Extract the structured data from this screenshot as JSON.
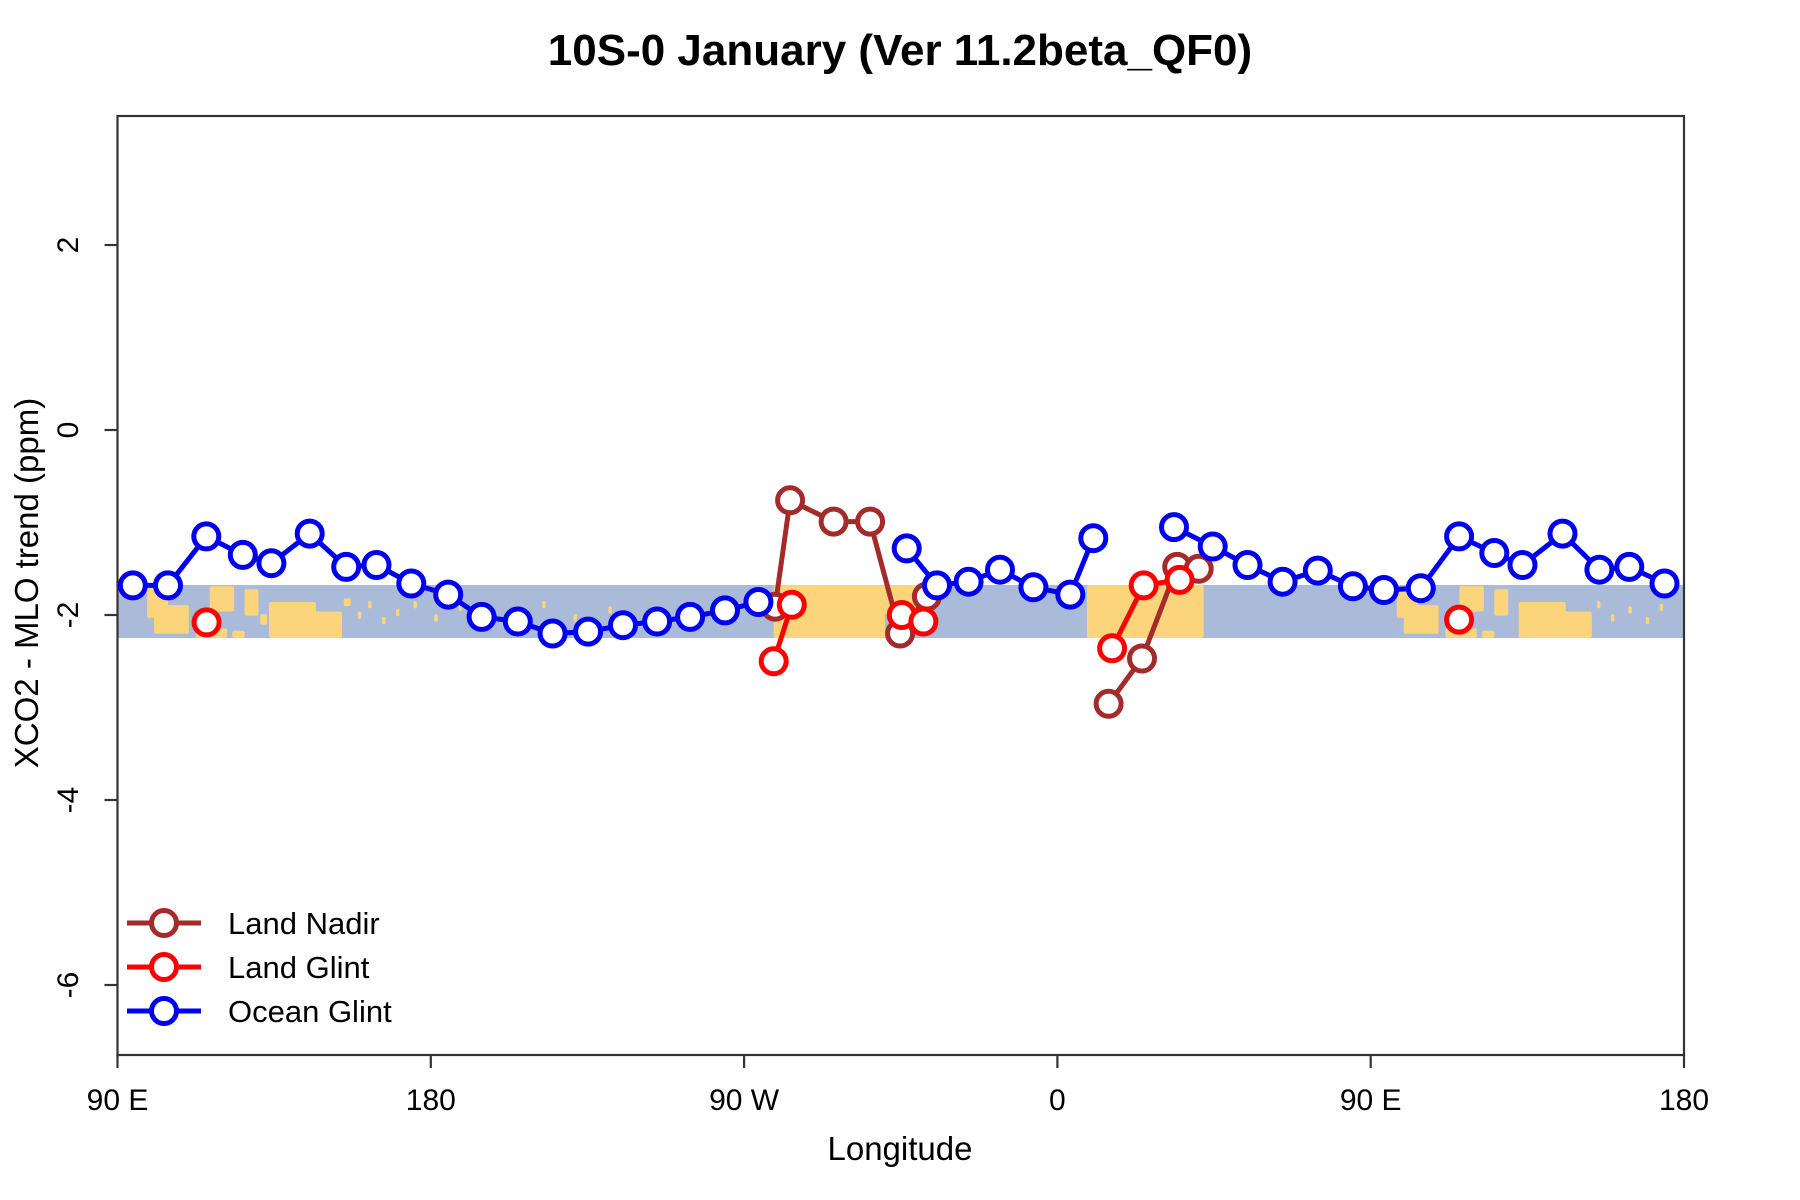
{
  "title": "10S-0 January (Ver 11.2beta_QF0)",
  "axes": {
    "x_label": "Longitude",
    "y_label": "XCO2 - MLO trend (ppm)"
  },
  "legend": {
    "items": [
      {
        "label": "Land Nadir",
        "color": "#a52a2a"
      },
      {
        "label": "Land Glint",
        "color": "#ff0000"
      },
      {
        "label": "Ocean Glint",
        "color": "#0000ee"
      }
    ]
  },
  "map_band": {
    "comment": "horizontal world-map strip (10S-0 latitude band) drawn behind data",
    "ocean_color": "#a9bbd8",
    "land_color": "#fcd47c",
    "top_value": -1.676,
    "bottom_value": -2.249,
    "land_blobs": [
      [
        98.5,
        104.5,
        0.05,
        0.62
      ],
      [
        100.5,
        110.5,
        0.38,
        0.92
      ],
      [
        112.5,
        121.5,
        0.82,
        1.0
      ],
      [
        123,
        126.5,
        0.86,
        1.0
      ],
      [
        116.5,
        123.5,
        0.02,
        0.5
      ],
      [
        126.5,
        130.5,
        0.08,
        0.58
      ],
      [
        131,
        133,
        0.55,
        0.75
      ],
      [
        133.5,
        147,
        0.32,
        1.0
      ],
      [
        142,
        154.5,
        0.5,
        1.0
      ],
      [
        155,
        157,
        0.25,
        0.4
      ],
      [
        159,
        160,
        0.5,
        0.64
      ],
      [
        162,
        163,
        0.3,
        0.44
      ],
      [
        166,
        167,
        0.6,
        0.74
      ],
      [
        170,
        171,
        0.45,
        0.59
      ],
      [
        175,
        176,
        0.3,
        0.44
      ],
      [
        181,
        182,
        0.55,
        0.69
      ],
      [
        188,
        189,
        0.35,
        0.49
      ],
      [
        195,
        196,
        0.6,
        0.74
      ],
      [
        203,
        204,
        0.45,
        0.59
      ],
      [
        212,
        213,
        0.3,
        0.44
      ],
      [
        221,
        222,
        0.55,
        0.69
      ],
      [
        231,
        232,
        0.4,
        0.54
      ],
      [
        243,
        244,
        0.6,
        0.74
      ],
      [
        252,
        253,
        0.35,
        0.49
      ],
      [
        261,
        262,
        0.5,
        0.64
      ],
      [
        278.5,
        310.5,
        0.0,
        1.0
      ],
      [
        309.5,
        324,
        0.0,
        0.55
      ],
      [
        368.5,
        402,
        0.0,
        1.0
      ],
      [
        457.5,
        463.5,
        0.05,
        0.62
      ],
      [
        459.5,
        469.5,
        0.38,
        0.92
      ],
      [
        471.5,
        480.5,
        0.82,
        1.0
      ],
      [
        482,
        485.5,
        0.86,
        1.0
      ],
      [
        475.5,
        482.5,
        0.02,
        0.5
      ],
      [
        485.5,
        489.5,
        0.08,
        0.58
      ],
      [
        492.5,
        506,
        0.32,
        1.0
      ],
      [
        501,
        513.5,
        0.5,
        1.0
      ],
      [
        515,
        516,
        0.3,
        0.44
      ],
      [
        519,
        520,
        0.55,
        0.69
      ],
      [
        524,
        525,
        0.4,
        0.54
      ],
      [
        529,
        530,
        0.6,
        0.74
      ],
      [
        533,
        534,
        0.35,
        0.49
      ]
    ]
  },
  "chart_data": {
    "type": "line",
    "title": "10S-0 January (Ver 11.2beta_QF0)",
    "xlabel": "Longitude",
    "ylabel": "XCO2 - MLO trend (ppm)",
    "x_convention": "axis degrees eastward: 90=90E, 180=180, 270=90W, 360=0, 450=90E, 540=180",
    "xlim": [
      90,
      540
    ],
    "ylim": [
      -6.76,
      3.39
    ],
    "grid": false,
    "legend_position": "bottom-left-inside",
    "x_ticks": [
      {
        "deg": 90,
        "label": "90 E"
      },
      {
        "deg": 180,
        "label": "180"
      },
      {
        "deg": 270,
        "label": "90 W"
      },
      {
        "deg": 360,
        "label": "0"
      },
      {
        "deg": 450,
        "label": "90 E"
      },
      {
        "deg": 540,
        "label": "180"
      }
    ],
    "y_ticks": [
      {
        "v": 2,
        "label": "2"
      },
      {
        "v": 0,
        "label": "0"
      },
      {
        "v": -2,
        "label": "-2"
      },
      {
        "v": -4,
        "label": "-4"
      },
      {
        "v": -6,
        "label": "-6"
      }
    ],
    "series": [
      {
        "name": "Land Nadir",
        "color": "#a52a2a",
        "segments": [
          [
            [
              278.9,
              -1.91
            ],
            [
              283.2,
              -0.76
            ],
            [
              295.7,
              -0.99
            ],
            [
              306.2,
              -0.99
            ],
            [
              314.8,
              -2.2
            ],
            [
              322.5,
              -1.8
            ]
          ],
          [
            [
              374.7,
              -2.96
            ],
            [
              384.3,
              -2.47
            ],
            [
              394.4,
              -1.48
            ],
            [
              400.6,
              -1.5
            ]
          ]
        ]
      },
      {
        "name": "Land Glint",
        "color": "#ff0000",
        "segments": [
          [
            [
              115.6,
              -2.08
            ]
          ],
          [
            [
              278.5,
              -2.5
            ],
            [
              283.7,
              -1.89
            ]
          ],
          [
            [
              315.3,
              -2.0
            ],
            [
              321.5,
              -2.07
            ]
          ],
          [
            [
              375.7,
              -2.36
            ],
            [
              384.8,
              -1.68
            ],
            [
              395.1,
              -1.62
            ]
          ],
          [
            [
              475.4,
              -2.05
            ]
          ]
        ]
      },
      {
        "name": "Ocean Glint",
        "color": "#0000ee",
        "segments": [
          [
            [
              94.4,
              -1.68
            ],
            [
              104.5,
              -1.68
            ],
            [
              115.5,
              -1.15
            ],
            [
              126.0,
              -1.35
            ],
            [
              134.2,
              -1.44
            ],
            [
              145.2,
              -1.12
            ],
            [
              155.7,
              -1.48
            ],
            [
              164.4,
              -1.46
            ],
            [
              174.4,
              -1.66
            ],
            [
              185.0,
              -1.78
            ],
            [
              194.6,
              -2.02
            ],
            [
              205.0,
              -2.07
            ],
            [
              215.0,
              -2.2
            ],
            [
              225.2,
              -2.18
            ],
            [
              235.2,
              -2.11
            ],
            [
              245.0,
              -2.07
            ],
            [
              254.5,
              -2.02
            ],
            [
              264.5,
              -1.95
            ],
            [
              274.1,
              -1.86
            ]
          ],
          [
            [
              316.7,
              -1.28
            ],
            [
              325.4,
              -1.68
            ],
            [
              334.5,
              -1.64
            ],
            [
              343.5,
              -1.51
            ],
            [
              353.1,
              -1.7
            ],
            [
              363.7,
              -1.78
            ],
            [
              370.3,
              -1.17
            ]
          ],
          [
            [
              393.5,
              -1.05
            ],
            [
              404.6,
              -1.26
            ],
            [
              414.6,
              -1.46
            ],
            [
              424.7,
              -1.64
            ],
            [
              434.8,
              -1.52
            ],
            [
              444.9,
              -1.69
            ],
            [
              453.8,
              -1.73
            ],
            [
              464.4,
              -1.71
            ],
            [
              475.4,
              -1.15
            ],
            [
              485.5,
              -1.33
            ],
            [
              493.6,
              -1.46
            ],
            [
              505.1,
              -1.12
            ],
            [
              515.7,
              -1.51
            ],
            [
              524.3,
              -1.48
            ],
            [
              534.4,
              -1.66
            ]
          ]
        ]
      }
    ]
  }
}
